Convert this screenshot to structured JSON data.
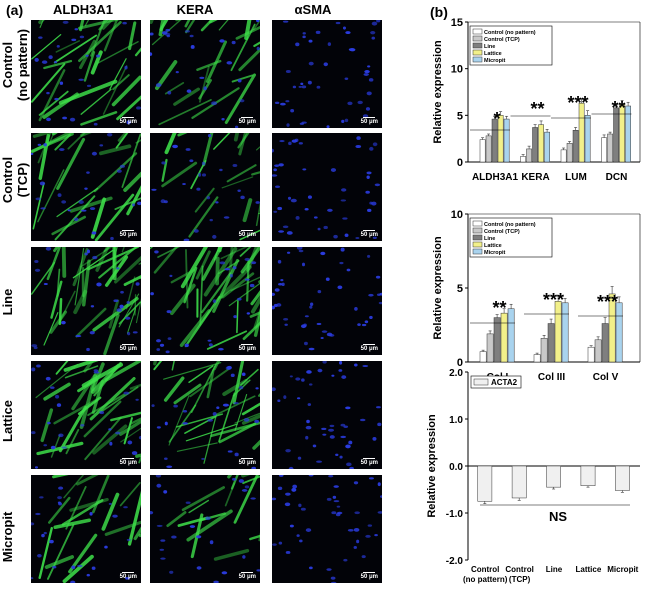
{
  "panel_a_label": "(a)",
  "panel_b_label": "(b)",
  "columns": [
    "ALDH3A1",
    "KERA",
    "αSMA"
  ],
  "rows": [
    "Control\n(no pattern)",
    "Control\n(TCP)",
    "Line",
    "Lattice",
    "Micropit"
  ],
  "scale_bar": "50 μm",
  "colors": {
    "control_no_pattern": "#ffffff",
    "control_tcp": "#c9c9c9",
    "line": "#7f7f7f",
    "lattice": "#f2f08a",
    "micropit": "#a9d3ee",
    "fluor_green": "#3ee04a",
    "fluor_blue": "#2a3ce0"
  },
  "chart_data": [
    {
      "type": "bar",
      "ylabel": "Relative expression",
      "ylim": [
        0,
        15
      ],
      "yticks": [
        0,
        5,
        10,
        15
      ],
      "categories": [
        "ALDH3A1",
        "KERA",
        "LUM",
        "DCN"
      ],
      "series": [
        {
          "name": "Control (no pattern)",
          "values": [
            2.4,
            0.6,
            1.3,
            2.6
          ]
        },
        {
          "name": "Control (TCP)",
          "values": [
            2.8,
            1.4,
            2.0,
            3.0
          ]
        },
        {
          "name": "Line",
          "values": [
            4.6,
            3.7,
            3.4,
            5.8
          ]
        },
        {
          "name": "Lattice",
          "values": [
            5.0,
            4.0,
            6.3,
            6.2
          ]
        },
        {
          "name": "Micropit",
          "values": [
            4.6,
            3.2,
            5.0,
            6.0
          ]
        }
      ],
      "errors": [
        [
          0.2,
          0.2,
          0.2,
          0.3
        ],
        [
          0.2,
          0.3,
          0.2,
          0.2
        ],
        [
          0.3,
          0.3,
          0.3,
          0.3
        ],
        [
          0.4,
          0.4,
          0.5,
          0.4
        ],
        [
          0.3,
          0.3,
          0.5,
          0.4
        ]
      ],
      "significance": [
        "*",
        "**",
        "***",
        "**"
      ],
      "legend": "top-right"
    },
    {
      "type": "bar",
      "ylabel": "Relative expression",
      "ylim": [
        0,
        10
      ],
      "yticks": [
        0,
        5,
        10
      ],
      "categories": [
        "Col I",
        "Col III",
        "Col V"
      ],
      "series": [
        {
          "name": "Control (no pattern)",
          "values": [
            0.7,
            0.5,
            1.0
          ]
        },
        {
          "name": "Control (TCP)",
          "values": [
            1.9,
            1.6,
            1.5
          ]
        },
        {
          "name": "Line",
          "values": [
            3.0,
            2.6,
            2.6
          ]
        },
        {
          "name": "Lattice",
          "values": [
            3.3,
            4.1,
            4.6
          ]
        },
        {
          "name": "Micropit",
          "values": [
            3.6,
            4.0,
            4.0
          ]
        }
      ],
      "errors": [
        [
          0.1,
          0.1,
          0.1
        ],
        [
          0.2,
          0.2,
          0.2
        ],
        [
          0.2,
          0.3,
          0.4
        ],
        [
          0.3,
          0.4,
          0.5
        ],
        [
          0.3,
          0.3,
          0.4
        ]
      ],
      "significance": [
        "**",
        "***",
        "***"
      ],
      "legend": "top-right"
    },
    {
      "type": "bar",
      "ylabel": "Relative expression",
      "ylim": [
        -2.0,
        2.0
      ],
      "yticks": [
        -2.0,
        -1.0,
        0.0,
        1.0,
        2.0
      ],
      "categories": [
        "Control\n(no pattern)",
        "Control\n(TCP)",
        "Line",
        "Lattice",
        "Micropit"
      ],
      "series": [
        {
          "name": "ACTA2",
          "values": [
            -0.75,
            -0.68,
            -0.45,
            -0.42,
            -0.52
          ]
        }
      ],
      "errors": [
        [
          0.05,
          0.05,
          0.04,
          0.03,
          0.04
        ]
      ],
      "significance": [
        "NS"
      ],
      "legend": "top-left"
    }
  ]
}
